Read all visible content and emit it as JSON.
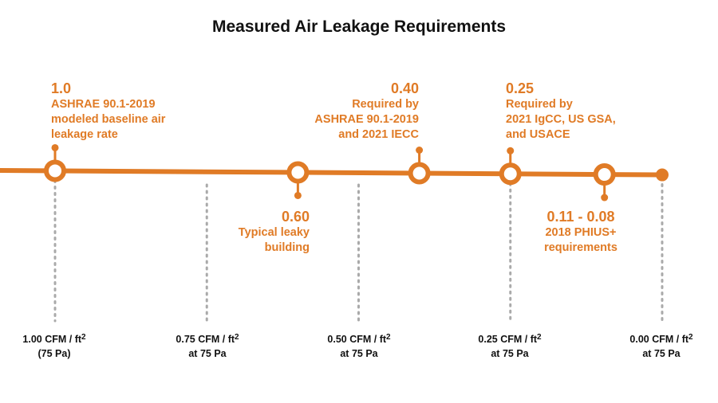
{
  "title": "Measured Air Leakage Requirements",
  "colors": {
    "accent": "#E07B26",
    "guide": "#AAAAAA",
    "text": "#111111"
  },
  "axis": {
    "ticks": [
      {
        "value": 1.0,
        "main": "1.00 CFM / ft",
        "sup": "2",
        "sub": "(75 Pa)"
      },
      {
        "value": 0.75,
        "main": "0.75 CFM / ft",
        "sup": "2",
        "sub": "at 75 Pa"
      },
      {
        "value": 0.5,
        "main": "0.50 CFM / ft",
        "sup": "2",
        "sub": "at 75 Pa"
      },
      {
        "value": 0.25,
        "main": "0.25 CFM / ft",
        "sup": "2",
        "sub": "at 75 Pa"
      },
      {
        "value": 0.0,
        "main": "0.00 CFM / ft",
        "sup": "2",
        "sub": "at 75 Pa"
      }
    ]
  },
  "markers": [
    {
      "value": 1.0,
      "label_value": "1.0",
      "label_lines": [
        "ASHRAE 90.1-2019",
        "modeled baseline air",
        "leakage rate"
      ],
      "side": "above"
    },
    {
      "value": 0.6,
      "label_value": "0.60",
      "label_lines": [
        "Typical leaky",
        "building"
      ],
      "side": "below"
    },
    {
      "value": 0.4,
      "label_value": "0.40",
      "label_lines": [
        "Required by",
        "ASHRAE 90.1-2019",
        "and 2021 IECC"
      ],
      "side": "above"
    },
    {
      "value": 0.25,
      "label_value": "0.25",
      "label_lines": [
        "Required by",
        "2021 IgCC, US GSA,",
        "and USACE"
      ],
      "side": "above"
    },
    {
      "value": 0.095,
      "label_value": "0.11 - 0.08",
      "label_lines": [
        "2018 PHIUS+",
        "requirements"
      ],
      "side": "below"
    }
  ],
  "end_value": 0.0
}
